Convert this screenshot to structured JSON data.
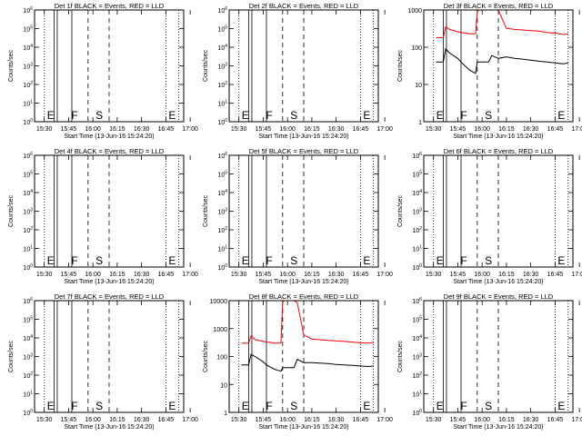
{
  "figure": {
    "xtick_labels": [
      "15:30",
      "15:45",
      "16:00",
      "16:15",
      "16:30",
      "16:45",
      "17:00"
    ],
    "xlabel": "Start Time (13-Jun-16 15:24:20)",
    "ylabel": "Counts/sec",
    "events_color": "#000000",
    "lld_color": "#ff0000"
  },
  "chart_data": [
    {
      "type": "line",
      "title": "Det 1f BLACK = Events, RED = LLD",
      "xlabel": "Start Time (13-Jun-16 15:24:20)",
      "ylabel": "Counts/sec",
      "ylog": true,
      "ylim": [
        1,
        1000000.0
      ],
      "ytick_labels": [
        "10^0",
        "10^1",
        "10^2",
        "10^3",
        "10^4",
        "10^5",
        "10^6"
      ],
      "xtick_labels": [
        "15:30",
        "15:45",
        "16:00",
        "16:15",
        "16:30",
        "16:45",
        "17:00"
      ],
      "markers": [
        {
          "label": "E",
          "x": 30
        },
        {
          "label": "F",
          "x": 45
        },
        {
          "label": "S",
          "x": 60
        },
        {
          "label": "E",
          "x": 105
        }
      ],
      "series": []
    },
    {
      "type": "line",
      "title": "Det 2f BLACK = Events, RED = LLD",
      "xlabel": "Start Time (13-Jun-16 15:24:20)",
      "ylabel": "Counts/sec",
      "ylog": true,
      "ylim": [
        1,
        1000000.0
      ],
      "ytick_labels": [
        "10^0",
        "10^1",
        "10^2",
        "10^3",
        "10^4",
        "10^5",
        "10^6"
      ],
      "xtick_labels": [
        "15:30",
        "15:45",
        "16:00",
        "16:15",
        "16:30",
        "16:45",
        "17:00"
      ],
      "markers": [
        {
          "label": "E",
          "x": 30
        },
        {
          "label": "F",
          "x": 45
        },
        {
          "label": "S",
          "x": 60
        },
        {
          "label": "E",
          "x": 105
        }
      ],
      "series": []
    },
    {
      "type": "line",
      "title": "Det 3f BLACK = Events, RED = LLD",
      "xlabel": "Start Time (13-Jun-16 15:24:20)",
      "ylabel": "Counts/sec",
      "ylog": true,
      "ylim": [
        1,
        1000
      ],
      "ytick_labels": [
        "1",
        "10",
        "100",
        "1000"
      ],
      "xtick_labels": [
        "15:30",
        "15:45",
        "16:00",
        "16:15",
        "16:30",
        "16:45",
        "17:00"
      ],
      "markers": [
        {
          "label": "E",
          "x": 30
        },
        {
          "label": "F",
          "x": 45
        },
        {
          "label": "S",
          "x": 60
        },
        {
          "label": "E",
          "x": 105
        }
      ],
      "series": [
        {
          "color": "#ff0000",
          "x": [
            31.5,
            36,
            37.5,
            40,
            45,
            47,
            50,
            52,
            54,
            56,
            57,
            58,
            60,
            64,
            66,
            70,
            75,
            80,
            85,
            90,
            95,
            100,
            105,
            110,
            113
          ],
          "y": [
            180,
            180,
            350,
            300,
            260,
            250,
            240,
            230,
            230,
            230,
            900,
            1000,
            1000,
            1000,
            1000,
            1000,
            320,
            300,
            290,
            280,
            270,
            250,
            240,
            220,
            230
          ]
        },
        {
          "color": "#000000",
          "x": [
            31.5,
            36,
            37.5,
            40,
            45,
            47,
            50,
            52,
            54,
            56,
            57,
            58,
            60,
            64,
            66,
            70,
            75,
            80,
            85,
            90,
            95,
            100,
            105,
            110,
            113
          ],
          "y": [
            40,
            40,
            90,
            70,
            50,
            40,
            30,
            25,
            22,
            20,
            40,
            40,
            40,
            40,
            60,
            50,
            55,
            50,
            48,
            45,
            42,
            40,
            38,
            36,
            38
          ]
        }
      ]
    },
    {
      "type": "line",
      "title": "Det 4f BLACK = Events, RED = LLD",
      "xlabel": "Start Time (13-Jun-16 15:24:20)",
      "ylabel": "Counts/sec",
      "ylog": true,
      "ylim": [
        1,
        1000000.0
      ],
      "ytick_labels": [
        "10^0",
        "10^1",
        "10^2",
        "10^3",
        "10^4",
        "10^5",
        "10^6"
      ],
      "xtick_labels": [
        "15:30",
        "15:45",
        "16:00",
        "16:15",
        "16:30",
        "16:45",
        "17:00"
      ],
      "markers": [
        {
          "label": "E",
          "x": 30
        },
        {
          "label": "F",
          "x": 45
        },
        {
          "label": "S",
          "x": 60
        },
        {
          "label": "E",
          "x": 105
        }
      ],
      "series": []
    },
    {
      "type": "line",
      "title": "Det 5f BLACK = Events, RED = LLD",
      "xlabel": "Start Time (13-Jun-16 15:24:20)",
      "ylabel": "Counts/sec",
      "ylog": true,
      "ylim": [
        1,
        1000000.0
      ],
      "ytick_labels": [
        "10^0",
        "10^1",
        "10^2",
        "10^3",
        "10^4",
        "10^5",
        "10^6"
      ],
      "xtick_labels": [
        "15:30",
        "15:45",
        "16:00",
        "16:15",
        "16:30",
        "16:45",
        "17:00"
      ],
      "markers": [
        {
          "label": "E",
          "x": 30
        },
        {
          "label": "F",
          "x": 45
        },
        {
          "label": "S",
          "x": 60
        },
        {
          "label": "E",
          "x": 105
        }
      ],
      "series": []
    },
    {
      "type": "line",
      "title": "Det 6f BLACK = Events, RED = LLD",
      "xlabel": "Start Time (13-Jun-16 15:24:20)",
      "ylabel": "Counts/sec",
      "ylog": true,
      "ylim": [
        1,
        1000000.0
      ],
      "ytick_labels": [
        "10^0",
        "10^1",
        "10^2",
        "10^3",
        "10^4",
        "10^5",
        "10^6"
      ],
      "xtick_labels": [
        "15:30",
        "15:45",
        "16:00",
        "16:15",
        "16:30",
        "16:45",
        "17:00"
      ],
      "markers": [
        {
          "label": "E",
          "x": 30
        },
        {
          "label": "F",
          "x": 45
        },
        {
          "label": "S",
          "x": 60
        },
        {
          "label": "E",
          "x": 105
        }
      ],
      "series": []
    },
    {
      "type": "line",
      "title": "Det 7f BLACK = Events, RED = LLD",
      "xlabel": "Start Time (13-Jun-16 15:24:20)",
      "ylabel": "Counts/sec",
      "ylog": true,
      "ylim": [
        1,
        1000000.0
      ],
      "ytick_labels": [
        "10^0",
        "10^1",
        "10^2",
        "10^3",
        "10^4",
        "10^5",
        "10^6"
      ],
      "xtick_labels": [
        "15:30",
        "15:45",
        "16:00",
        "16:15",
        "16:30",
        "16:45",
        "17:00"
      ],
      "markers": [
        {
          "label": "E",
          "x": 30
        },
        {
          "label": "F",
          "x": 45
        },
        {
          "label": "S",
          "x": 60
        },
        {
          "label": "E",
          "x": 105
        }
      ],
      "series": []
    },
    {
      "type": "line",
      "title": "Det 8f BLACK = Events, RED = LLD",
      "xlabel": "Start Time (13-Jun-16 15:24:20)",
      "ylabel": "Counts/sec",
      "ylog": true,
      "ylim": [
        1,
        10000
      ],
      "ytick_labels": [
        "1",
        "10",
        "100",
        "1000",
        "10000"
      ],
      "xtick_labels": [
        "15:30",
        "15:45",
        "16:00",
        "16:15",
        "16:30",
        "16:45",
        "17:00"
      ],
      "markers": [
        {
          "label": "E",
          "x": 30
        },
        {
          "label": "F",
          "x": 45
        },
        {
          "label": "S",
          "x": 60
        },
        {
          "label": "E",
          "x": 105
        }
      ],
      "series": [
        {
          "color": "#ff0000",
          "x": [
            31.5,
            36,
            37.5,
            40,
            45,
            47,
            50,
            52,
            54,
            56,
            57,
            58,
            60,
            64,
            66,
            70,
            75,
            80,
            85,
            90,
            95,
            100,
            105,
            110,
            113
          ],
          "y": [
            300,
            300,
            550,
            400,
            350,
            330,
            320,
            300,
            300,
            300,
            9000,
            10000,
            10000,
            10000,
            8500,
            600,
            420,
            400,
            380,
            360,
            350,
            330,
            310,
            300,
            320
          ]
        },
        {
          "color": "#000000",
          "x": [
            31.5,
            36,
            37.5,
            40,
            45,
            47,
            50,
            52,
            54,
            56,
            57,
            58,
            60,
            64,
            66,
            70,
            75,
            80,
            85,
            90,
            95,
            100,
            105,
            110,
            113
          ],
          "y": [
            50,
            50,
            120,
            100,
            65,
            50,
            40,
            35,
            32,
            30,
            40,
            40,
            40,
            40,
            80,
            60,
            60,
            58,
            56,
            52,
            50,
            48,
            46,
            44,
            46
          ]
        }
      ]
    },
    {
      "type": "line",
      "title": "Det 9f BLACK = Events, RED = LLD",
      "xlabel": "Start Time (13-Jun-16 15:24:20)",
      "ylabel": "Counts/sec",
      "ylog": true,
      "ylim": [
        1,
        1000000.0
      ],
      "ytick_labels": [
        "10^0",
        "10^1",
        "10^2",
        "10^3",
        "10^4",
        "10^5",
        "10^6"
      ],
      "xtick_labels": [
        "15:30",
        "15:45",
        "16:00",
        "16:15",
        "16:30",
        "16:45",
        "17:00"
      ],
      "markers": [
        {
          "label": "E",
          "x": 30
        },
        {
          "label": "F",
          "x": 45
        },
        {
          "label": "S",
          "x": 60
        },
        {
          "label": "E",
          "x": 105
        }
      ],
      "series": []
    }
  ]
}
